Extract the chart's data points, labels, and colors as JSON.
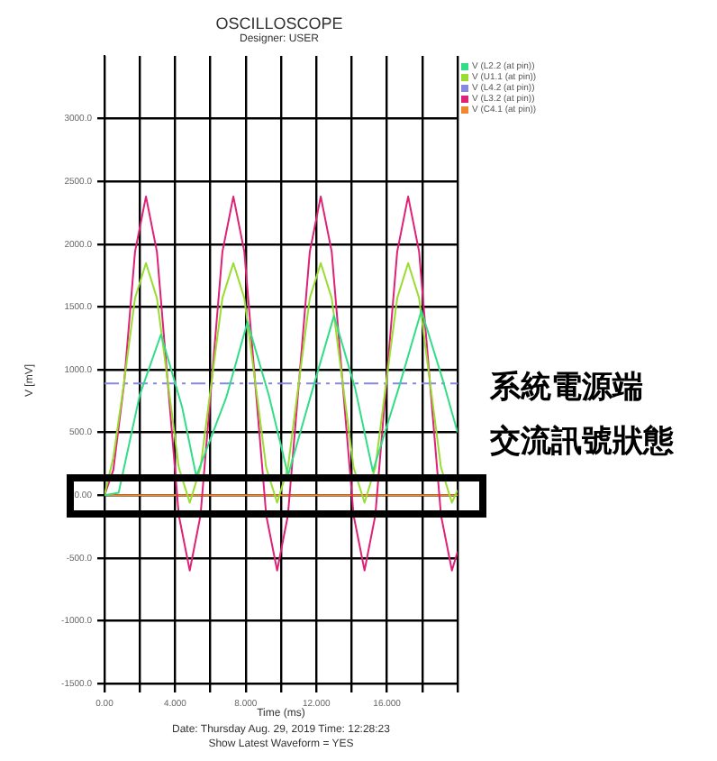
{
  "chart_data": {
    "type": "line",
    "title": "OSCILLOSCOPE",
    "subtitle": "Designer: USER",
    "xlabel": "Time (ms)",
    "ylabel": "V [mV]",
    "xlim": [
      0,
      20
    ],
    "xticks": [
      {
        "value": 0,
        "label": "0.00"
      },
      {
        "value": 2,
        "label": null
      },
      {
        "value": 4,
        "label": "4.000"
      },
      {
        "value": 6,
        "label": null
      },
      {
        "value": 8,
        "label": "8.000"
      },
      {
        "value": 10,
        "label": null
      },
      {
        "value": 12,
        "label": "12.000"
      },
      {
        "value": 14,
        "label": null
      },
      {
        "value": 16,
        "label": "16.000"
      },
      {
        "value": 18,
        "label": null
      },
      {
        "value": 20,
        "label": null
      }
    ],
    "ylim": [
      -1500,
      3500
    ],
    "yticks": [
      {
        "value": -1500,
        "label": "-1500.0"
      },
      {
        "value": -1000,
        "label": "-1000.0"
      },
      {
        "value": -500,
        "label": "-500.0"
      },
      {
        "value": 0,
        "label": "0.00"
      },
      {
        "value": 500,
        "label": "500.0"
      },
      {
        "value": 1000,
        "label": "1000.0"
      },
      {
        "value": 1500,
        "label": "1500.0"
      },
      {
        "value": 2000,
        "label": "2000.0"
      },
      {
        "value": 2500,
        "label": "2500.0"
      },
      {
        "value": 3000,
        "label": "3000.0"
      }
    ],
    "grid": true,
    "legend": "top right",
    "line_style": "solid",
    "series": [
      {
        "name": "V (L2.2 (at pin))",
        "color": "#33dd88",
        "x": [
          0,
          0.8,
          2.0,
          3.2,
          4.4,
          5.2,
          6.9,
          8.1,
          9.3,
          10.4,
          11.8,
          13.0,
          14.2,
          15.2,
          16.7,
          17.95,
          19.2,
          20
        ],
        "values": [
          0,
          20,
          800,
          1280,
          700,
          150,
          780,
          1380,
          800,
          160,
          850,
          1430,
          850,
          190,
          870,
          1470,
          900,
          500
        ]
      },
      {
        "name": "V (U1.1 (at pin))",
        "color": "#99dd33",
        "x": [
          0,
          0.5,
          1.11,
          1.73,
          2.35,
          2.97,
          3.59,
          4.21,
          4.83,
          5.44,
          6.06,
          6.68,
          7.3,
          7.92,
          8.54,
          9.16,
          9.78,
          10.39,
          11.01,
          11.63,
          12.25,
          12.87,
          13.49,
          14.11,
          14.73,
          15.34,
          15.96,
          16.58,
          17.2,
          17.82,
          18.44,
          19.06,
          19.68,
          20
        ],
        "values": [
          0,
          300,
          900,
          1570,
          1850,
          1570,
          900,
          220,
          -60,
          220,
          900,
          1570,
          1850,
          1570,
          900,
          220,
          -60,
          220,
          900,
          1570,
          1850,
          1570,
          900,
          220,
          -60,
          220,
          900,
          1570,
          1850,
          1570,
          900,
          220,
          -60,
          40
        ]
      },
      {
        "name": "V (L4.2 (at pin))",
        "color": "#8888dd",
        "line_style": "dashed",
        "x": [
          0,
          20
        ],
        "values": [
          890,
          890
        ]
      },
      {
        "name": "V (L3.2 (at pin))",
        "color": "#dd2277",
        "x": [
          0,
          0.5,
          1.11,
          1.73,
          2.35,
          2.97,
          3.59,
          4.21,
          4.83,
          5.44,
          6.06,
          6.68,
          7.3,
          7.92,
          8.54,
          9.16,
          9.78,
          10.39,
          11.01,
          11.63,
          12.25,
          12.87,
          13.49,
          14.11,
          14.73,
          15.34,
          15.96,
          16.58,
          17.2,
          17.82,
          18.44,
          19.06,
          19.68,
          20
        ],
        "values": [
          0,
          200,
          890,
          1940,
          2380,
          1940,
          890,
          -160,
          -600,
          -160,
          890,
          1940,
          2380,
          1940,
          890,
          -160,
          -600,
          -160,
          890,
          1940,
          2380,
          1940,
          890,
          -160,
          -600,
          -160,
          890,
          1940,
          2380,
          1940,
          890,
          -160,
          -600,
          -450
        ]
      },
      {
        "name": "V (C4.1 (at pin))",
        "color": "#ee8833",
        "x": [
          0,
          20
        ],
        "values": [
          0,
          0
        ]
      }
    ],
    "annotations": [
      "系統電源端",
      "交流訊號狀態",
      "Date: Thursday Aug. 29, 2019  Time: 12:28:23",
      "Show Latest Waveform = YES"
    ]
  }
}
